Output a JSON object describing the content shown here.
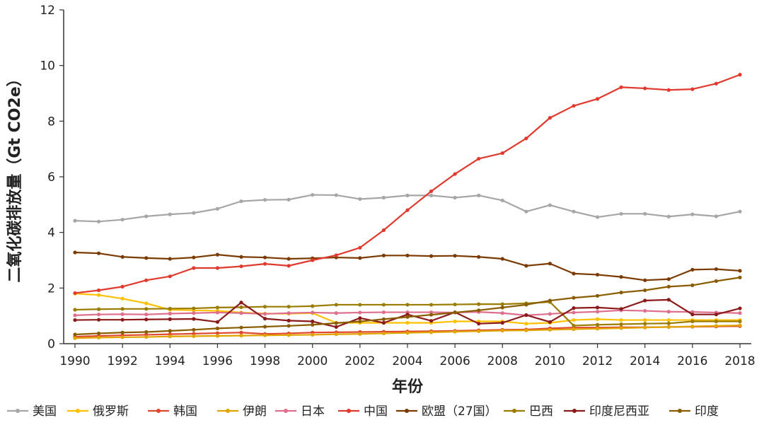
{
  "chart_data": {
    "type": "line",
    "title": "",
    "xlabel": "年份",
    "ylabel": "二氧化碳排放量（Gt CO2e）",
    "xlim": [
      1990,
      2018
    ],
    "ylim": [
      0,
      12
    ],
    "x_ticks": [
      "1990",
      "1992",
      "1994",
      "1996",
      "1998",
      "2000",
      "2002",
      "2004",
      "2006",
      "2008",
      "2010",
      "2012",
      "2014",
      "2016",
      "2018"
    ],
    "y_ticks": [
      "0",
      "2",
      "4",
      "6",
      "8",
      "10",
      "12"
    ],
    "grid": false,
    "legend_position": "bottom",
    "x": [
      1990,
      1991,
      1992,
      1993,
      1994,
      1995,
      1996,
      1997,
      1998,
      1999,
      2000,
      2001,
      2002,
      2003,
      2004,
      2005,
      2006,
      2007,
      2008,
      2009,
      2010,
      2011,
      2012,
      2013,
      2014,
      2015,
      2016,
      2017,
      2018
    ],
    "series": [
      {
        "name": "美国",
        "color": "#a6a6a6",
        "values": [
          4.42,
          4.39,
          4.46,
          4.58,
          4.65,
          4.7,
          4.85,
          5.12,
          5.17,
          5.18,
          5.35,
          5.34,
          5.2,
          5.25,
          5.33,
          5.33,
          5.25,
          5.33,
          5.15,
          4.75,
          4.98,
          4.75,
          4.55,
          4.67,
          4.67,
          4.57,
          4.65,
          4.58,
          4.75
        ]
      },
      {
        "name": "俄罗斯",
        "color": "#ffc000",
        "values": [
          1.8,
          1.75,
          1.62,
          1.45,
          1.22,
          1.2,
          1.18,
          1.12,
          1.08,
          1.08,
          1.1,
          0.75,
          0.75,
          0.75,
          0.75,
          0.75,
          0.8,
          0.8,
          0.8,
          0.72,
          0.75,
          0.85,
          0.88,
          0.85,
          0.85,
          0.85,
          0.85,
          0.85,
          0.85
        ]
      },
      {
        "name": "韩国",
        "color": "#e0472f",
        "values": [
          0.25,
          0.28,
          0.3,
          0.32,
          0.34,
          0.36,
          0.38,
          0.4,
          0.35,
          0.37,
          0.4,
          0.41,
          0.42,
          0.43,
          0.44,
          0.45,
          0.46,
          0.48,
          0.5,
          0.51,
          0.55,
          0.58,
          0.58,
          0.59,
          0.59,
          0.6,
          0.61,
          0.62,
          0.63
        ]
      },
      {
        "name": "伊朗",
        "color": "#e0a400",
        "values": [
          0.2,
          0.22,
          0.23,
          0.24,
          0.26,
          0.27,
          0.28,
          0.29,
          0.3,
          0.31,
          0.32,
          0.34,
          0.35,
          0.37,
          0.39,
          0.41,
          0.43,
          0.45,
          0.47,
          0.48,
          0.5,
          0.52,
          0.54,
          0.56,
          0.58,
          0.6,
          0.62,
          0.64,
          0.66
        ]
      },
      {
        "name": "日本",
        "color": "#de6f8c",
        "values": [
          1.02,
          1.05,
          1.06,
          1.05,
          1.08,
          1.1,
          1.12,
          1.1,
          1.07,
          1.1,
          1.12,
          1.1,
          1.12,
          1.13,
          1.13,
          1.13,
          1.12,
          1.14,
          1.1,
          1.02,
          1.07,
          1.12,
          1.15,
          1.2,
          1.18,
          1.15,
          1.14,
          1.12,
          1.1
        ]
      },
      {
        "name": "中国",
        "color": "#e03a2e",
        "values": [
          1.82,
          1.92,
          2.05,
          2.28,
          2.42,
          2.72,
          2.72,
          2.78,
          2.87,
          2.8,
          3.0,
          3.18,
          3.45,
          4.08,
          4.8,
          5.48,
          6.1,
          6.65,
          6.85,
          7.38,
          8.12,
          8.55,
          8.8,
          9.22,
          9.18,
          9.12,
          9.15,
          9.35,
          9.67
        ]
      },
      {
        "name": "欧盟（27国）",
        "color": "#7a3a00",
        "values": [
          3.28,
          3.25,
          3.12,
          3.08,
          3.05,
          3.1,
          3.2,
          3.12,
          3.1,
          3.05,
          3.07,
          3.1,
          3.08,
          3.17,
          3.17,
          3.15,
          3.16,
          3.12,
          3.05,
          2.8,
          2.88,
          2.52,
          2.48,
          2.4,
          2.28,
          2.32,
          2.66,
          2.68,
          2.62
        ]
      },
      {
        "name": "巴西",
        "color": "#9a7c00",
        "values": [
          1.22,
          1.24,
          1.25,
          1.25,
          1.26,
          1.27,
          1.3,
          1.31,
          1.33,
          1.33,
          1.35,
          1.4,
          1.4,
          1.4,
          1.4,
          1.4,
          1.41,
          1.42,
          1.42,
          1.45,
          1.5,
          0.65,
          0.68,
          0.7,
          0.72,
          0.73,
          0.8,
          0.8,
          0.8
        ]
      },
      {
        "name": "印度尼西亚",
        "color": "#8b1a1a",
        "values": [
          0.85,
          0.86,
          0.86,
          0.87,
          0.88,
          0.89,
          0.78,
          1.48,
          0.9,
          0.83,
          0.8,
          0.6,
          0.92,
          0.75,
          1.05,
          0.82,
          1.13,
          0.72,
          0.75,
          1.03,
          0.78,
          1.28,
          1.3,
          1.25,
          1.55,
          1.58,
          1.05,
          1.05,
          1.27
        ]
      },
      {
        "name": "印度",
        "color": "#8a5c00",
        "values": [
          0.33,
          0.37,
          0.4,
          0.42,
          0.46,
          0.5,
          0.55,
          0.58,
          0.61,
          0.64,
          0.68,
          0.74,
          0.8,
          0.88,
          0.96,
          1.04,
          1.12,
          1.2,
          1.3,
          1.4,
          1.55,
          1.65,
          1.72,
          1.84,
          1.92,
          2.05,
          2.1,
          2.25,
          2.38
        ]
      }
    ]
  }
}
